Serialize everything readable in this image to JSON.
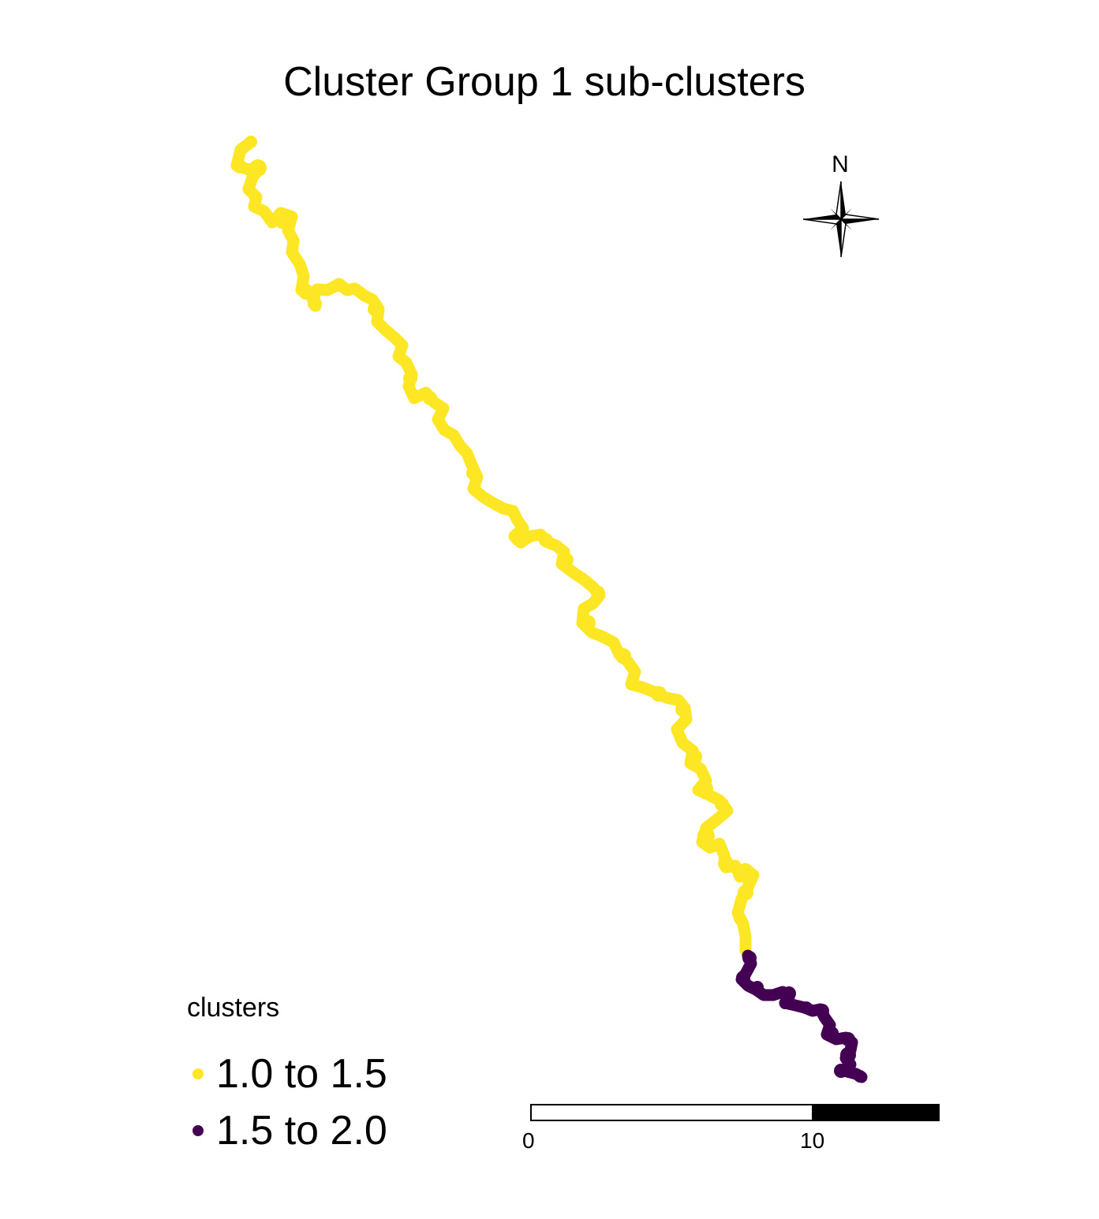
{
  "title": "Cluster Group 1 sub-clusters",
  "legend": {
    "title": "clusters",
    "entries": [
      {
        "label": "1.0 to 1.5",
        "color": "#FDE725"
      },
      {
        "label": "1.5 to 2.0",
        "color": "#440154"
      }
    ]
  },
  "north_arrow": {
    "label": "N"
  },
  "scale_bar": {
    "ticks": [
      "0",
      "10"
    ]
  },
  "colors": {
    "cluster_low": "#FDE725",
    "cluster_high": "#440154",
    "ink": "#000000"
  }
}
